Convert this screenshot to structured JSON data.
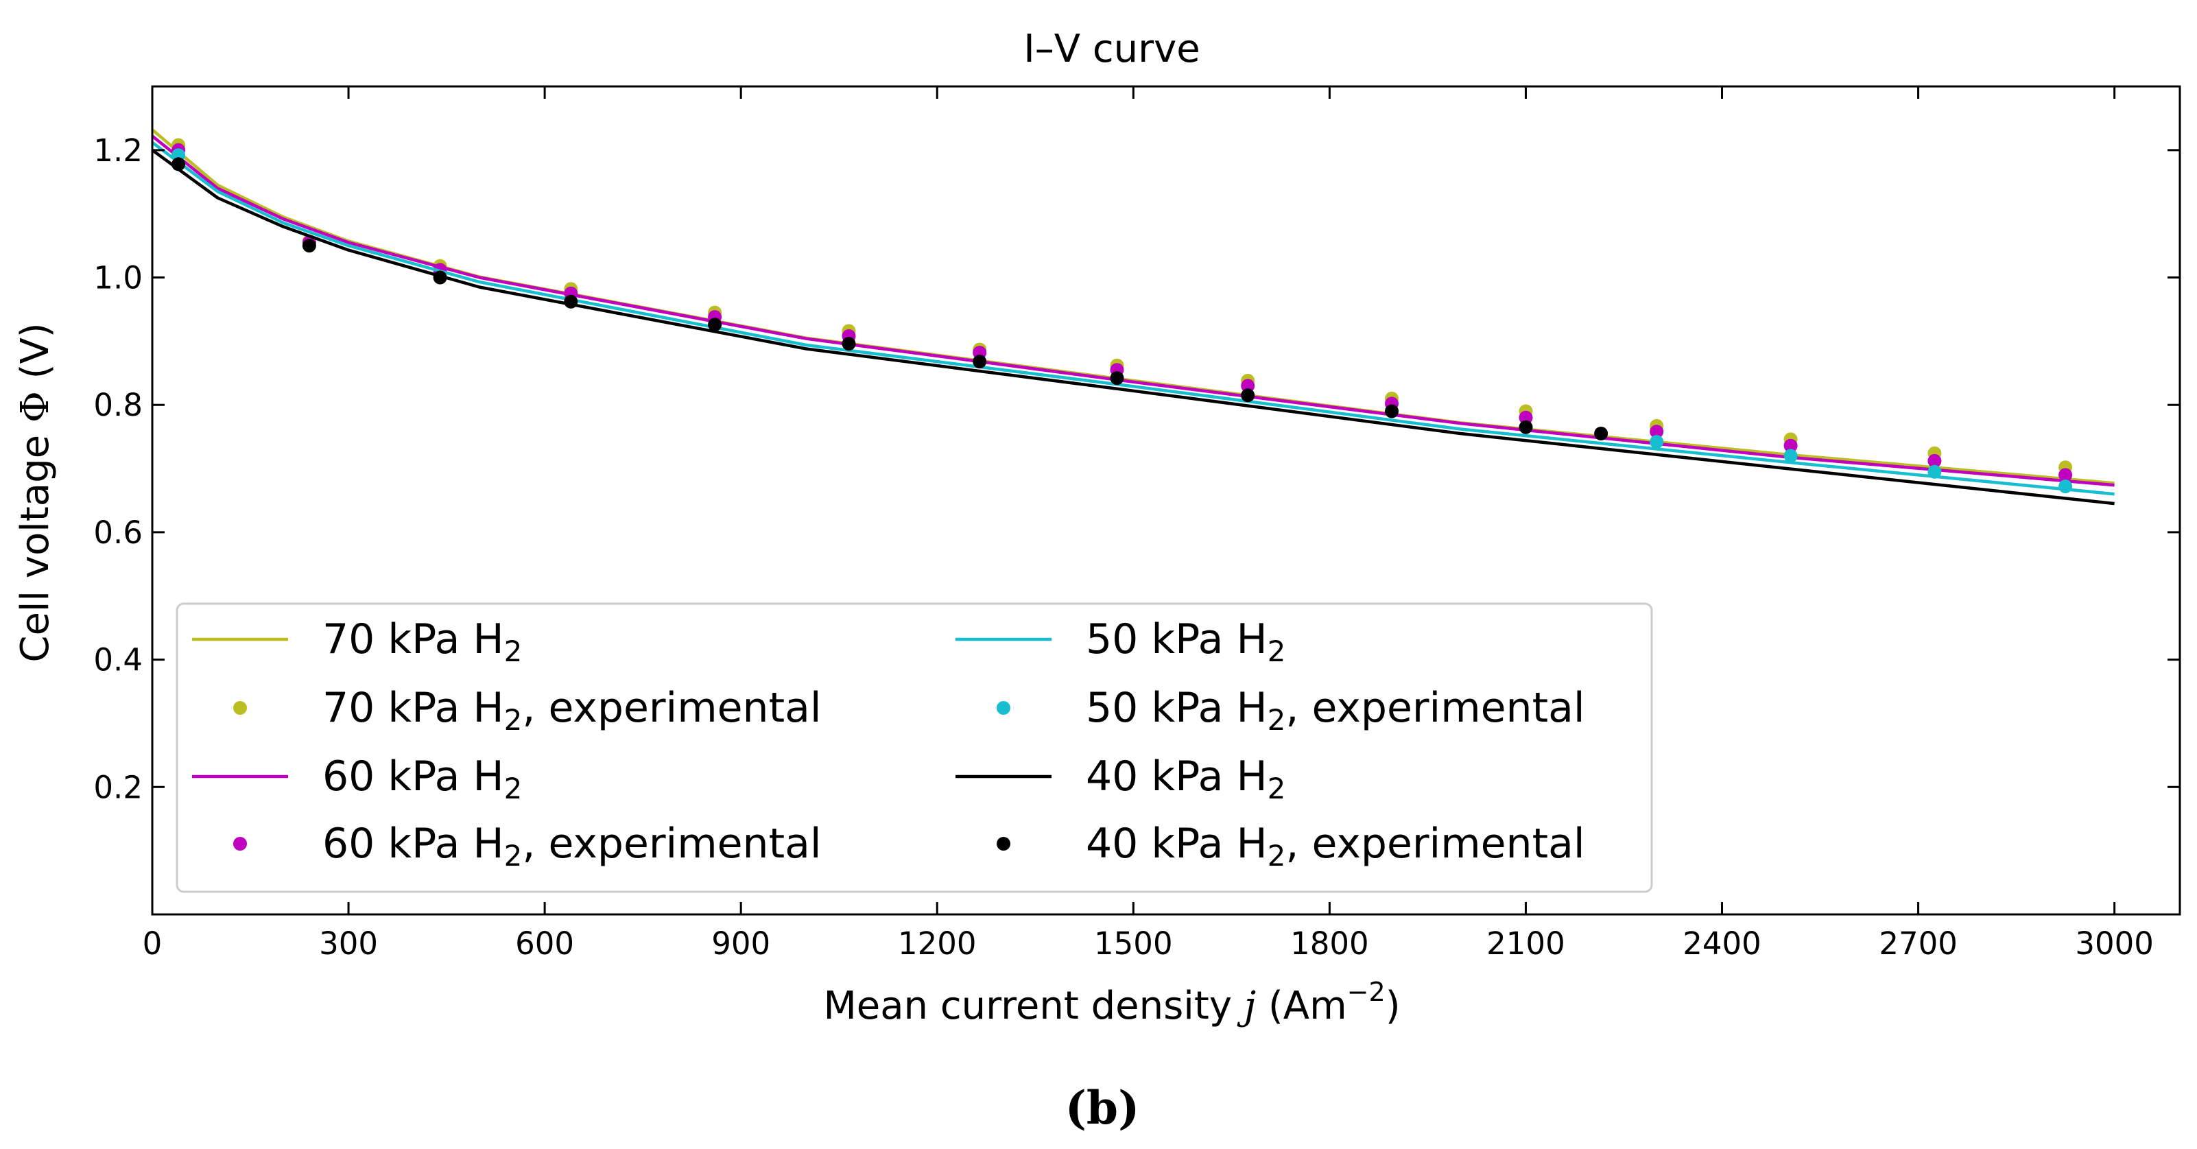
{
  "chart_data": {
    "type": "line",
    "title": "I–V curve",
    "xlabel": {
      "prefix": "Mean current density ",
      "var": "j",
      "unit_pre": " (Am",
      "unit_sup": "−2",
      "unit_post": ")"
    },
    "ylabel": {
      "prefix": "Cell voltage ",
      "var": "Φ",
      "suffix": " (V)"
    },
    "caption": "(b)",
    "xlim": [
      0,
      3100
    ],
    "ylim": [
      0,
      1.3
    ],
    "xticks": [
      0,
      300,
      600,
      900,
      1200,
      1500,
      1800,
      2100,
      2400,
      2700,
      3000
    ],
    "yticks": [
      0.2,
      0.4,
      0.6,
      0.8,
      1.0,
      1.2
    ],
    "legend_position": "lower-left",
    "series": [
      {
        "name": "70 kPa H2",
        "kind": "line",
        "color": "#bcbd22",
        "x": [
          0,
          100,
          200,
          300,
          500,
          1000,
          1500,
          2000,
          2500,
          3000
        ],
        "y": [
          1.232,
          1.145,
          1.095,
          1.057,
          1.001,
          0.905,
          0.838,
          0.772,
          0.722,
          0.677
        ]
      },
      {
        "name": "70 kPa H2, experimental",
        "kind": "scatter",
        "color": "#bcbd22",
        "x": [
          40,
          240,
          440,
          640,
          860,
          1065,
          1265,
          1475,
          1675,
          1895,
          2100,
          2300,
          2505,
          2725,
          2925
        ],
        "y": [
          1.208,
          1.057,
          1.018,
          0.982,
          0.945,
          0.916,
          0.887,
          0.862,
          0.838,
          0.81,
          0.79,
          0.767,
          0.746,
          0.724,
          0.702
        ]
      },
      {
        "name": "60 kPa H2",
        "kind": "line",
        "color": "#bf00bf",
        "x": [
          0,
          100,
          200,
          300,
          500,
          1000,
          1500,
          2000,
          2500,
          3000
        ],
        "y": [
          1.222,
          1.14,
          1.092,
          1.055,
          1.0,
          0.904,
          0.836,
          0.771,
          0.718,
          0.674
        ]
      },
      {
        "name": "60 kPa H2, experimental",
        "kind": "scatter",
        "color": "#bf00bf",
        "x": [
          40,
          240,
          440,
          640,
          860,
          1065,
          1265,
          1475,
          1675,
          1895,
          2100,
          2300,
          2505,
          2725,
          2925
        ],
        "y": [
          1.2,
          1.055,
          1.012,
          0.975,
          0.938,
          0.908,
          0.882,
          0.855,
          0.83,
          0.802,
          0.78,
          0.758,
          0.736,
          0.712,
          0.69
        ]
      },
      {
        "name": "50 kPa H2",
        "kind": "line",
        "color": "#17becf",
        "x": [
          0,
          100,
          200,
          300,
          500,
          1000,
          1500,
          2000,
          2500,
          3000
        ],
        "y": [
          1.212,
          1.135,
          1.086,
          1.05,
          0.993,
          0.894,
          0.829,
          0.762,
          0.71,
          0.66
        ]
      },
      {
        "name": "50 kPa H2, experimental",
        "kind": "scatter",
        "color": "#17becf",
        "x": [
          40,
          2300,
          2505,
          2725,
          2925
        ],
        "y": [
          1.192,
          0.742,
          0.72,
          0.695,
          0.672
        ]
      },
      {
        "name": "40 kPa H2",
        "kind": "line",
        "color": "#000000",
        "x": [
          0,
          100,
          200,
          300,
          500,
          1000,
          1500,
          2000,
          2500,
          3000
        ],
        "y": [
          1.2,
          1.125,
          1.08,
          1.043,
          0.985,
          0.888,
          0.822,
          0.755,
          0.7,
          0.645
        ]
      },
      {
        "name": "40 kPa H2, experimental",
        "kind": "scatter",
        "color": "#000000",
        "x": [
          40,
          240,
          440,
          640,
          860,
          1065,
          1265,
          1475,
          1675,
          1895,
          2100,
          2215
        ],
        "y": [
          1.178,
          1.05,
          1.0,
          0.962,
          0.926,
          0.896,
          0.868,
          0.842,
          0.815,
          0.79,
          0.765,
          0.755
        ]
      }
    ],
    "legend": [
      {
        "series": 0,
        "pre": "70 kPa H",
        "sub": "2",
        "post": ""
      },
      {
        "series": 1,
        "pre": "70 kPa H",
        "sub": "2",
        "post": ", experimental"
      },
      {
        "series": 2,
        "pre": "60 kPa H",
        "sub": "2",
        "post": ""
      },
      {
        "series": 3,
        "pre": "60 kPa H",
        "sub": "2",
        "post": ", experimental"
      },
      {
        "series": 4,
        "pre": "50 kPa H",
        "sub": "2",
        "post": ""
      },
      {
        "series": 5,
        "pre": "50 kPa H",
        "sub": "2",
        "post": ", experimental"
      },
      {
        "series": 6,
        "pre": "40 kPa H",
        "sub": "2",
        "post": ""
      },
      {
        "series": 7,
        "pre": "40 kPa H",
        "sub": "2",
        "post": ", experimental"
      }
    ]
  }
}
